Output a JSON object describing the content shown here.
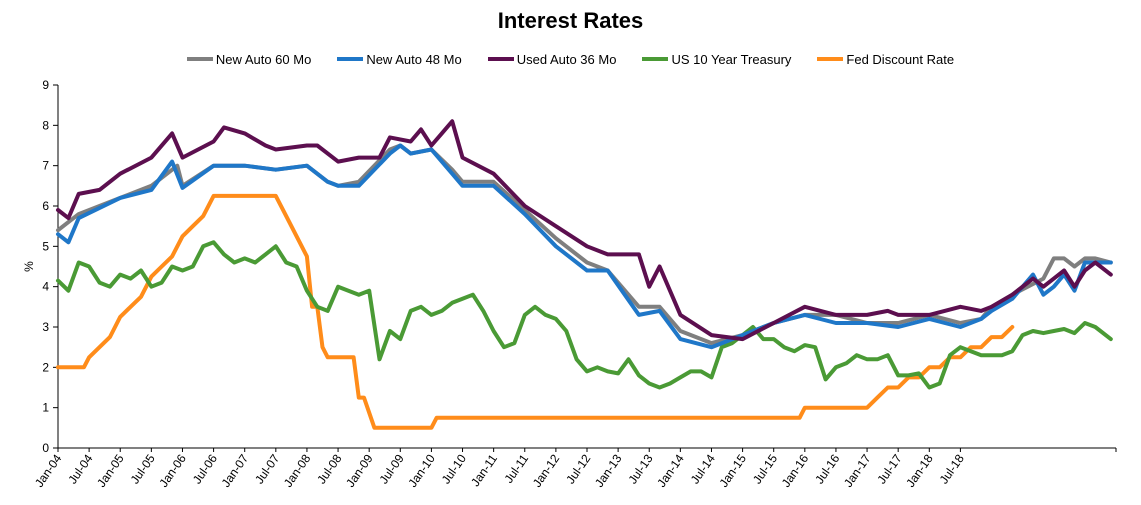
{
  "chart_data": {
    "type": "line",
    "title": "Interest Rates",
    "xlabel": "",
    "ylabel": "%",
    "ylim": [
      0,
      9
    ],
    "yticks": [
      "0",
      "1",
      "2",
      "3",
      "4",
      "5",
      "6",
      "7",
      "8",
      "9"
    ],
    "x_start": "Jan-04",
    "x_end": "Dec-18",
    "x_tick_labels": [
      "Jan-04",
      "Jul-04",
      "Jan-05",
      "Jul-05",
      "Jan-06",
      "Jul-06",
      "Jan-07",
      "Jul-07",
      "Jan-08",
      "Jul-08",
      "Jan-09",
      "Jul-09",
      "Jan-10",
      "Jul-10",
      "Jan-11",
      "Jul-11",
      "Jan-12",
      "Jul-12",
      "Jan-13",
      "Jul-13",
      "Jan-14",
      "Jul-14",
      "Jan-15",
      "Jul-15",
      "Jan-16",
      "Jul-16",
      "Jan-17",
      "Jul-17",
      "Jan-18",
      "Jul-18"
    ],
    "grid": false,
    "legend_position": "top",
    "series": [
      {
        "name": "New Auto 60 Mo",
        "color": "#7f7f7f",
        "anchors": [
          [
            0,
            5.4
          ],
          [
            4,
            5.8
          ],
          [
            12,
            6.2
          ],
          [
            18,
            6.5
          ],
          [
            23,
            7.0
          ],
          [
            24,
            6.5
          ],
          [
            30,
            7.0
          ],
          [
            36,
            7.0
          ],
          [
            42,
            6.9
          ],
          [
            48,
            7.0
          ],
          [
            52,
            6.6
          ],
          [
            54,
            6.5
          ],
          [
            58,
            6.6
          ],
          [
            64,
            7.4
          ],
          [
            66,
            7.5
          ],
          [
            68,
            7.3
          ],
          [
            72,
            7.4
          ],
          [
            76,
            6.9
          ],
          [
            78,
            6.6
          ],
          [
            84,
            6.6
          ],
          [
            90,
            5.9
          ],
          [
            96,
            5.2
          ],
          [
            102,
            4.6
          ],
          [
            106,
            4.4
          ],
          [
            112,
            3.5
          ],
          [
            116,
            3.5
          ],
          [
            120,
            2.9
          ],
          [
            126,
            2.6
          ],
          [
            132,
            2.8
          ],
          [
            138,
            3.1
          ],
          [
            144,
            3.3
          ],
          [
            150,
            3.3
          ],
          [
            156,
            3.1
          ],
          [
            162,
            3.1
          ],
          [
            168,
            3.3
          ],
          [
            174,
            3.1
          ],
          [
            178,
            3.2
          ],
          [
            180,
            3.5
          ],
          [
            184,
            3.8
          ],
          [
            190,
            4.2
          ],
          [
            192,
            4.7
          ],
          [
            194,
            4.7
          ],
          [
            196,
            4.5
          ],
          [
            198,
            4.7
          ],
          [
            200,
            4.7
          ],
          [
            203,
            4.6
          ]
        ]
      },
      {
        "name": "New Auto 48 Mo",
        "color": "#1f77c8",
        "anchors": [
          [
            0,
            5.3
          ],
          [
            2,
            5.1
          ],
          [
            4,
            5.7
          ],
          [
            12,
            6.2
          ],
          [
            18,
            6.4
          ],
          [
            22,
            7.1
          ],
          [
            24,
            6.45
          ],
          [
            30,
            7.0
          ],
          [
            36,
            7.0
          ],
          [
            42,
            6.9
          ],
          [
            48,
            7.0
          ],
          [
            52,
            6.6
          ],
          [
            54,
            6.5
          ],
          [
            58,
            6.5
          ],
          [
            64,
            7.3
          ],
          [
            66,
            7.5
          ],
          [
            68,
            7.3
          ],
          [
            72,
            7.4
          ],
          [
            76,
            6.8
          ],
          [
            78,
            6.5
          ],
          [
            84,
            6.5
          ],
          [
            90,
            5.8
          ],
          [
            96,
            5.0
          ],
          [
            102,
            4.4
          ],
          [
            106,
            4.4
          ],
          [
            112,
            3.3
          ],
          [
            116,
            3.4
          ],
          [
            120,
            2.7
          ],
          [
            126,
            2.5
          ],
          [
            132,
            2.8
          ],
          [
            138,
            3.1
          ],
          [
            144,
            3.3
          ],
          [
            150,
            3.1
          ],
          [
            156,
            3.1
          ],
          [
            162,
            3.0
          ],
          [
            168,
            3.2
          ],
          [
            174,
            3.0
          ],
          [
            178,
            3.2
          ],
          [
            180,
            3.4
          ],
          [
            184,
            3.7
          ],
          [
            188,
            4.3
          ],
          [
            190,
            3.8
          ],
          [
            192,
            4.0
          ],
          [
            194,
            4.3
          ],
          [
            196,
            3.9
          ],
          [
            198,
            4.6
          ],
          [
            200,
            4.6
          ],
          [
            203,
            4.6
          ]
        ]
      },
      {
        "name": "Used Auto 36 Mo",
        "color": "#5c0f4f",
        "anchors": [
          [
            0,
            5.9
          ],
          [
            2,
            5.7
          ],
          [
            4,
            6.3
          ],
          [
            8,
            6.4
          ],
          [
            12,
            6.8
          ],
          [
            18,
            7.2
          ],
          [
            22,
            7.8
          ],
          [
            24,
            7.2
          ],
          [
            30,
            7.6
          ],
          [
            32,
            7.95
          ],
          [
            36,
            7.8
          ],
          [
            40,
            7.5
          ],
          [
            42,
            7.4
          ],
          [
            48,
            7.5
          ],
          [
            50,
            7.5
          ],
          [
            54,
            7.1
          ],
          [
            58,
            7.2
          ],
          [
            62,
            7.2
          ],
          [
            64,
            7.7
          ],
          [
            68,
            7.6
          ],
          [
            70,
            7.9
          ],
          [
            72,
            7.5
          ],
          [
            74,
            7.8
          ],
          [
            76,
            8.1
          ],
          [
            78,
            7.2
          ],
          [
            84,
            6.8
          ],
          [
            90,
            6.0
          ],
          [
            96,
            5.5
          ],
          [
            102,
            5.0
          ],
          [
            106,
            4.8
          ],
          [
            112,
            4.8
          ],
          [
            114,
            4.0
          ],
          [
            116,
            4.5
          ],
          [
            120,
            3.3
          ],
          [
            126,
            2.8
          ],
          [
            132,
            2.7
          ],
          [
            138,
            3.1
          ],
          [
            144,
            3.5
          ],
          [
            150,
            3.3
          ],
          [
            156,
            3.3
          ],
          [
            160,
            3.4
          ],
          [
            162,
            3.3
          ],
          [
            168,
            3.3
          ],
          [
            174,
            3.5
          ],
          [
            178,
            3.4
          ],
          [
            180,
            3.5
          ],
          [
            184,
            3.8
          ],
          [
            188,
            4.2
          ],
          [
            190,
            4.0
          ],
          [
            192,
            4.2
          ],
          [
            194,
            4.4
          ],
          [
            196,
            4.0
          ],
          [
            198,
            4.4
          ],
          [
            200,
            4.6
          ],
          [
            203,
            4.3
          ]
        ]
      },
      {
        "name": "US 10 Year Treasury",
        "color": "#4a9a35",
        "anchors": [
          [
            0,
            4.15
          ],
          [
            2,
            3.9
          ],
          [
            4,
            4.6
          ],
          [
            6,
            4.5
          ],
          [
            8,
            4.1
          ],
          [
            10,
            4.0
          ],
          [
            12,
            4.3
          ],
          [
            14,
            4.2
          ],
          [
            16,
            4.4
          ],
          [
            18,
            4.0
          ],
          [
            20,
            4.1
          ],
          [
            22,
            4.5
          ],
          [
            24,
            4.4
          ],
          [
            26,
            4.5
          ],
          [
            28,
            5.0
          ],
          [
            30,
            5.1
          ],
          [
            32,
            4.8
          ],
          [
            34,
            4.6
          ],
          [
            36,
            4.7
          ],
          [
            38,
            4.6
          ],
          [
            40,
            4.8
          ],
          [
            42,
            5.0
          ],
          [
            44,
            4.6
          ],
          [
            46,
            4.5
          ],
          [
            48,
            3.9
          ],
          [
            50,
            3.5
          ],
          [
            52,
            3.4
          ],
          [
            54,
            4.0
          ],
          [
            56,
            3.9
          ],
          [
            58,
            3.8
          ],
          [
            60,
            3.9
          ],
          [
            62,
            2.2
          ],
          [
            64,
            2.9
          ],
          [
            66,
            2.7
          ],
          [
            68,
            3.4
          ],
          [
            70,
            3.5
          ],
          [
            72,
            3.3
          ],
          [
            74,
            3.4
          ],
          [
            76,
            3.6
          ],
          [
            78,
            3.7
          ],
          [
            80,
            3.8
          ],
          [
            82,
            3.4
          ],
          [
            84,
            2.9
          ],
          [
            86,
            2.5
          ],
          [
            88,
            2.6
          ],
          [
            90,
            3.3
          ],
          [
            92,
            3.5
          ],
          [
            94,
            3.3
          ],
          [
            96,
            3.2
          ],
          [
            98,
            2.9
          ],
          [
            100,
            2.2
          ],
          [
            102,
            1.9
          ],
          [
            104,
            2.0
          ],
          [
            106,
            1.9
          ],
          [
            108,
            1.85
          ],
          [
            110,
            2.2
          ],
          [
            112,
            1.8
          ],
          [
            114,
            1.6
          ],
          [
            116,
            1.5
          ],
          [
            118,
            1.6
          ],
          [
            120,
            1.75
          ],
          [
            122,
            1.9
          ],
          [
            124,
            1.9
          ],
          [
            126,
            1.75
          ],
          [
            128,
            2.5
          ],
          [
            130,
            2.6
          ],
          [
            132,
            2.8
          ],
          [
            134,
            3.0
          ],
          [
            136,
            2.7
          ],
          [
            138,
            2.7
          ],
          [
            140,
            2.5
          ],
          [
            142,
            2.4
          ],
          [
            144,
            2.55
          ],
          [
            146,
            2.5
          ],
          [
            148,
            1.7
          ],
          [
            150,
            2.0
          ],
          [
            152,
            2.1
          ],
          [
            154,
            2.3
          ],
          [
            156,
            2.2
          ],
          [
            158,
            2.2
          ],
          [
            160,
            2.3
          ],
          [
            162,
            1.8
          ],
          [
            164,
            1.8
          ],
          [
            166,
            1.85
          ],
          [
            168,
            1.5
          ],
          [
            170,
            1.6
          ],
          [
            172,
            2.3
          ],
          [
            174,
            2.5
          ],
          [
            176,
            2.4
          ],
          [
            178,
            2.3
          ],
          [
            180,
            2.3
          ],
          [
            182,
            2.3
          ],
          [
            184,
            2.4
          ],
          [
            186,
            2.8
          ],
          [
            188,
            2.9
          ],
          [
            190,
            2.85
          ],
          [
            192,
            2.9
          ],
          [
            194,
            2.95
          ],
          [
            196,
            2.85
          ],
          [
            198,
            3.1
          ],
          [
            200,
            3.0
          ],
          [
            203,
            2.7
          ]
        ]
      },
      {
        "name": "Fed Discount Rate",
        "color": "#ff8c1a",
        "anchors": [
          [
            0,
            2.0
          ],
          [
            5,
            2.0
          ],
          [
            6,
            2.25
          ],
          [
            8,
            2.5
          ],
          [
            10,
            2.75
          ],
          [
            12,
            3.25
          ],
          [
            14,
            3.5
          ],
          [
            16,
            3.75
          ],
          [
            18,
            4.25
          ],
          [
            20,
            4.5
          ],
          [
            22,
            4.75
          ],
          [
            24,
            5.25
          ],
          [
            26,
            5.5
          ],
          [
            28,
            5.75
          ],
          [
            30,
            6.25
          ],
          [
            32,
            6.25
          ],
          [
            42,
            6.25
          ],
          [
            44,
            5.75
          ],
          [
            46,
            5.25
          ],
          [
            48,
            4.75
          ],
          [
            49,
            3.5
          ],
          [
            50,
            3.5
          ],
          [
            51,
            2.5
          ],
          [
            52,
            2.25
          ],
          [
            54,
            2.25
          ],
          [
            55,
            2.25
          ],
          [
            57,
            2.25
          ],
          [
            58,
            1.25
          ],
          [
            59,
            1.25
          ],
          [
            61,
            0.5
          ],
          [
            62,
            0.5
          ],
          [
            72,
            0.5
          ],
          [
            73,
            0.75
          ],
          [
            74,
            0.75
          ],
          [
            143,
            0.75
          ],
          [
            144,
            1.0
          ],
          [
            156,
            1.0
          ],
          [
            158,
            1.25
          ],
          [
            160,
            1.5
          ],
          [
            162,
            1.5
          ],
          [
            164,
            1.75
          ],
          [
            166,
            1.75
          ],
          [
            168,
            2.0
          ],
          [
            170,
            2.0
          ],
          [
            172,
            2.25
          ],
          [
            174,
            2.25
          ],
          [
            176,
            2.5
          ],
          [
            178,
            2.5
          ],
          [
            180,
            2.75
          ],
          [
            182,
            2.75
          ],
          [
            184,
            3.0
          ]
        ]
      }
    ]
  }
}
